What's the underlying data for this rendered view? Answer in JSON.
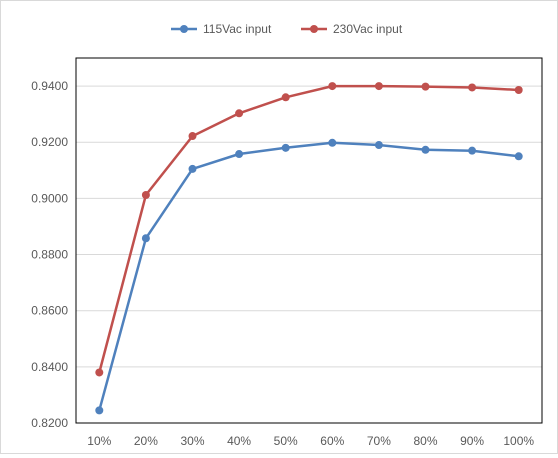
{
  "chart_data": {
    "type": "line",
    "title": "",
    "xlabel": "",
    "ylabel": "",
    "categories": [
      "10%",
      "20%",
      "30%",
      "40%",
      "50%",
      "60%",
      "70%",
      "80%",
      "90%",
      "100%"
    ],
    "ylim": [
      0.82,
      0.95
    ],
    "yticks": [
      "0.8200",
      "0.8400",
      "0.8600",
      "0.8800",
      "0.9000",
      "0.9200",
      "0.9400"
    ],
    "ytick_values": [
      0.82,
      0.84,
      0.86,
      0.88,
      0.9,
      0.92,
      0.94
    ],
    "grid": "horizontal",
    "legend_position": "top",
    "series": [
      {
        "name": "115Vac input",
        "color": "#4f81bd",
        "values": [
          0.8245,
          0.8858,
          0.9105,
          0.9158,
          0.918,
          0.9198,
          0.919,
          0.9173,
          0.917,
          0.915
        ]
      },
      {
        "name": "230Vac input",
        "color": "#c0504d",
        "values": [
          0.838,
          0.9012,
          0.9222,
          0.9303,
          0.936,
          0.94,
          0.94,
          0.9398,
          0.9395,
          0.9386
        ]
      }
    ]
  }
}
